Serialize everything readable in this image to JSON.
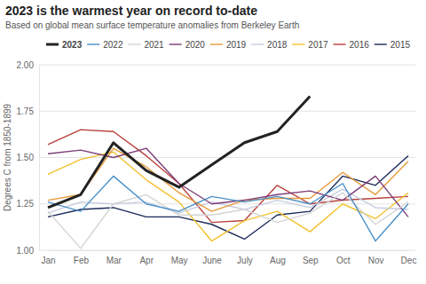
{
  "chart_data": {
    "type": "line",
    "title": "2023 is the warmest year on record to-date",
    "subtitle": "Based on global mean surface temperature anomalies from Berkeley Earth",
    "y_label": "Degrees C from 1850-1899",
    "categories": [
      "Jan",
      "Feb",
      "Mar",
      "Apr",
      "May",
      "June",
      "July",
      "Aug",
      "Sep",
      "Oct",
      "Nov",
      "Dec"
    ],
    "series": [
      {
        "name": "2023",
        "color": "#222222",
        "line_style": "bold",
        "values": [
          1.23,
          1.3,
          1.58,
          1.43,
          1.34,
          1.46,
          1.58,
          1.64,
          1.83,
          null,
          null,
          null
        ]
      },
      {
        "name": "2022",
        "color": "#4a90c8",
        "line_style": "solid",
        "values": [
          1.26,
          1.21,
          1.4,
          1.25,
          1.21,
          1.29,
          1.26,
          1.29,
          1.25,
          1.36,
          1.05,
          1.25
        ]
      },
      {
        "name": "2021",
        "color": "#d4d4d4",
        "line_style": "solid",
        "values": [
          1.21,
          1.01,
          1.25,
          1.3,
          1.19,
          1.19,
          1.22,
          1.15,
          1.2,
          1.31,
          1.14,
          1.26
        ]
      },
      {
        "name": "2020",
        "color": "#7d3c78",
        "line_style": "solid",
        "values": [
          1.52,
          1.54,
          1.5,
          1.55,
          1.36,
          1.25,
          1.27,
          1.3,
          1.32,
          1.27,
          1.4,
          1.18
        ]
      },
      {
        "name": "2019",
        "color": "#e69a3a",
        "line_style": "solid",
        "values": [
          1.27,
          1.3,
          1.55,
          1.45,
          1.31,
          1.21,
          1.27,
          1.28,
          1.28,
          1.42,
          1.3,
          1.48
        ]
      },
      {
        "name": "2018",
        "color": "#c6cde0",
        "line_style": "solid",
        "values": [
          1.2,
          1.26,
          1.25,
          1.26,
          1.2,
          1.26,
          1.22,
          1.27,
          1.23,
          1.33,
          1.23,
          1.22
        ]
      },
      {
        "name": "2017",
        "color": "#f2c12e",
        "line_style": "solid",
        "values": [
          1.41,
          1.49,
          1.53,
          1.38,
          1.26,
          1.05,
          1.16,
          1.21,
          1.1,
          1.25,
          1.17,
          1.31
        ]
      },
      {
        "name": "2016",
        "color": "#b8403b",
        "line_style": "solid",
        "values": [
          1.57,
          1.65,
          1.64,
          1.51,
          1.36,
          1.15,
          1.16,
          1.35,
          1.25,
          1.27,
          1.28,
          1.29
        ]
      },
      {
        "name": "2015",
        "color": "#1b2a5a",
        "line_style": "solid",
        "values": [
          1.18,
          1.22,
          1.23,
          1.18,
          1.18,
          1.14,
          1.06,
          1.19,
          1.21,
          1.4,
          1.35,
          1.51
        ]
      }
    ],
    "ylim": [
      1,
      2
    ],
    "yticks": [
      {
        "value": 1,
        "label": "1.00"
      },
      {
        "value": 1.25,
        "label": "1.25"
      },
      {
        "value": 1.5,
        "label": "1.50"
      },
      {
        "value": 1.75,
        "label": "1.75"
      },
      {
        "value": 2,
        "label": "2.00"
      }
    ],
    "grid": true,
    "legend": "top"
  }
}
